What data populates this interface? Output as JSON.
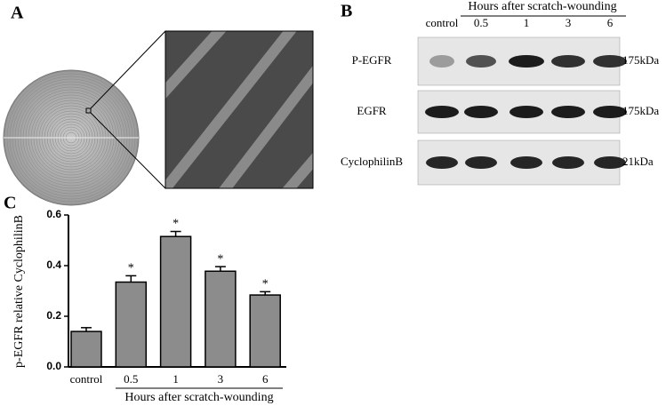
{
  "panel_a": {
    "label": "A"
  },
  "panel_b": {
    "label": "B",
    "header": "Hours after scratch-wounding",
    "lanes": [
      "control",
      "0.5",
      "1",
      "3",
      "6"
    ],
    "rows": [
      {
        "name": "P-EGFR",
        "size": "175kDa"
      },
      {
        "name": "EGFR",
        "size": "175kDa"
      },
      {
        "name": "CyclophilinB",
        "size": "21kDa"
      }
    ]
  },
  "chart_data": {
    "type": "bar",
    "panel_label": "C",
    "y_label": "p-EGFR relative CyclophilinB",
    "x_label": "Hours after scratch-wounding",
    "categories": [
      "control",
      "0.5",
      "1",
      "3",
      "6"
    ],
    "values": [
      0.14,
      0.335,
      0.515,
      0.378,
      0.284
    ],
    "errors": [
      0.015,
      0.025,
      0.02,
      0.018,
      0.013
    ],
    "markers": [
      null,
      "*",
      "*",
      "*",
      "*"
    ],
    "color": "#8c8c8c",
    "ylim": [
      0,
      0.6
    ],
    "yticks": [
      {
        "value": 0,
        "label": "0.0"
      },
      0.2,
      0.4,
      0.6
    ]
  }
}
